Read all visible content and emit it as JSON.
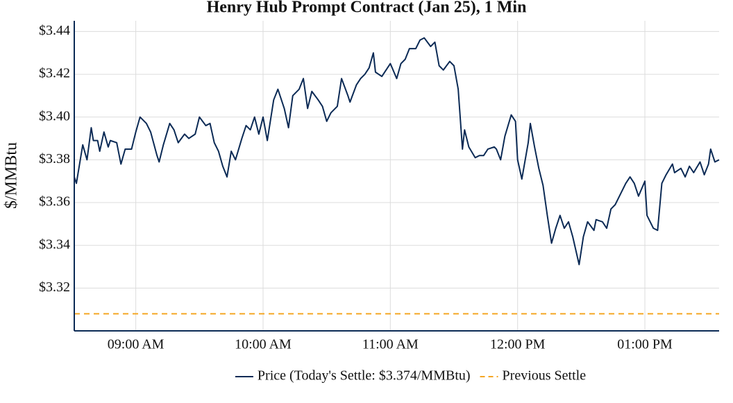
{
  "chart_data": {
    "type": "line",
    "title": "Henry Hub Prompt Contract (Jan 25), 1 Min",
    "y_label": "$/MMBtu",
    "x": [
      "08:31",
      "08:32",
      "08:35",
      "08:37",
      "08:39",
      "08:40",
      "08:42",
      "08:43",
      "08:45",
      "08:47",
      "08:48",
      "08:51",
      "08:53",
      "08:55",
      "08:58",
      "09:00",
      "09:02",
      "09:05",
      "09:07",
      "09:10",
      "09:11",
      "09:13",
      "09:16",
      "09:18",
      "09:20",
      "09:23",
      "09:25",
      "09:28",
      "09:30",
      "09:33",
      "09:35",
      "09:37",
      "09:39",
      "09:41",
      "09:43",
      "09:45",
      "09:47",
      "09:50",
      "09:52",
      "09:54",
      "09:56",
      "09:58",
      "10:00",
      "10:02",
      "10:05",
      "10:07",
      "10:10",
      "10:12",
      "10:14",
      "10:17",
      "10:19",
      "10:21",
      "10:23",
      "10:26",
      "10:28",
      "10:30",
      "10:32",
      "10:35",
      "10:37",
      "10:40",
      "10:41",
      "10:44",
      "10:46",
      "10:48",
      "10:50",
      "10:52",
      "10:53",
      "10:56",
      "10:58",
      "11:00",
      "11:03",
      "11:05",
      "11:07",
      "11:09",
      "11:12",
      "11:14",
      "11:16",
      "11:19",
      "11:21",
      "11:23",
      "11:25",
      "11:28",
      "11:30",
      "11:32",
      "11:34",
      "11:35",
      "11:37",
      "11:40",
      "11:42",
      "11:44",
      "11:46",
      "11:49",
      "11:50",
      "11:52",
      "11:54",
      "11:57",
      "11:59",
      "12:00",
      "12:02",
      "12:05",
      "12:06",
      "12:08",
      "12:10",
      "12:12",
      "12:14",
      "12:16",
      "12:18",
      "12:20",
      "12:22",
      "12:24",
      "12:26",
      "12:29",
      "12:31",
      "12:33",
      "12:36",
      "12:37",
      "12:40",
      "12:42",
      "12:44",
      "12:46",
      "12:48",
      "12:51",
      "12:53",
      "12:55",
      "12:57",
      "13:00",
      "13:01",
      "13:04",
      "13:06",
      "13:08",
      "13:10",
      "13:13",
      "13:14",
      "13:17",
      "13:19",
      "13:21",
      "13:23",
      "13:26",
      "13:28",
      "13:30",
      "13:31",
      "13:33",
      "13:35"
    ],
    "series": [
      {
        "name": "Price (Today's Settle: $3.374/MMBtu)",
        "color": "#0b2a55",
        "values": [
          3.372,
          3.369,
          3.387,
          3.38,
          3.395,
          3.389,
          3.389,
          3.384,
          3.393,
          3.386,
          3.389,
          3.388,
          3.378,
          3.385,
          3.385,
          3.393,
          3.4,
          3.397,
          3.393,
          3.382,
          3.379,
          3.387,
          3.397,
          3.394,
          3.388,
          3.392,
          3.39,
          3.392,
          3.4,
          3.396,
          3.397,
          3.388,
          3.384,
          3.377,
          3.372,
          3.384,
          3.38,
          3.39,
          3.396,
          3.394,
          3.4,
          3.392,
          3.4,
          3.389,
          3.408,
          3.413,
          3.404,
          3.395,
          3.41,
          3.413,
          3.418,
          3.404,
          3.412,
          3.408,
          3.405,
          3.398,
          3.402,
          3.405,
          3.418,
          3.41,
          3.407,
          3.415,
          3.418,
          3.42,
          3.423,
          3.43,
          3.421,
          3.419,
          3.422,
          3.425,
          3.418,
          3.425,
          3.427,
          3.432,
          3.432,
          3.436,
          3.437,
          3.433,
          3.435,
          3.424,
          3.422,
          3.426,
          3.424,
          3.413,
          3.385,
          3.394,
          3.386,
          3.381,
          3.382,
          3.382,
          3.385,
          3.386,
          3.385,
          3.38,
          3.391,
          3.401,
          3.398,
          3.38,
          3.371,
          3.388,
          3.397,
          3.386,
          3.376,
          3.368,
          3.354,
          3.341,
          3.348,
          3.354,
          3.348,
          3.351,
          3.344,
          3.331,
          3.344,
          3.351,
          3.347,
          3.352,
          3.351,
          3.348,
          3.357,
          3.359,
          3.363,
          3.369,
          3.372,
          3.369,
          3.363,
          3.37,
          3.354,
          3.348,
          3.347,
          3.369,
          3.373,
          3.378,
          3.374,
          3.376,
          3.372,
          3.377,
          3.374,
          3.379,
          3.373,
          3.378,
          3.385,
          3.379,
          3.38
        ]
      }
    ],
    "reference_lines": [
      {
        "name": "Previous Settle",
        "value": 3.308,
        "color": "#f5a623",
        "style": "dashed"
      }
    ],
    "xlim": [
      "08:31",
      "13:35"
    ],
    "xticks": [
      {
        "value": "09:00",
        "label": "09:00 AM"
      },
      {
        "value": "10:00",
        "label": "10:00 AM"
      },
      {
        "value": "11:00",
        "label": "11:00 AM"
      },
      {
        "value": "12:00",
        "label": "12:00 PM"
      },
      {
        "value": "13:00",
        "label": "01:00 PM"
      }
    ],
    "ylim": [
      3.3,
      3.445
    ],
    "yticks": [
      {
        "value": 3.32,
        "label": "$3.32"
      },
      {
        "value": 3.34,
        "label": "$3.34"
      },
      {
        "value": 3.36,
        "label": "$3.36"
      },
      {
        "value": 3.38,
        "label": "$3.38"
      },
      {
        "value": 3.4,
        "label": "$3.40"
      },
      {
        "value": 3.42,
        "label": "$3.42"
      },
      {
        "value": 3.44,
        "label": "$3.44"
      }
    ],
    "grid": true,
    "legend": "bottom"
  }
}
